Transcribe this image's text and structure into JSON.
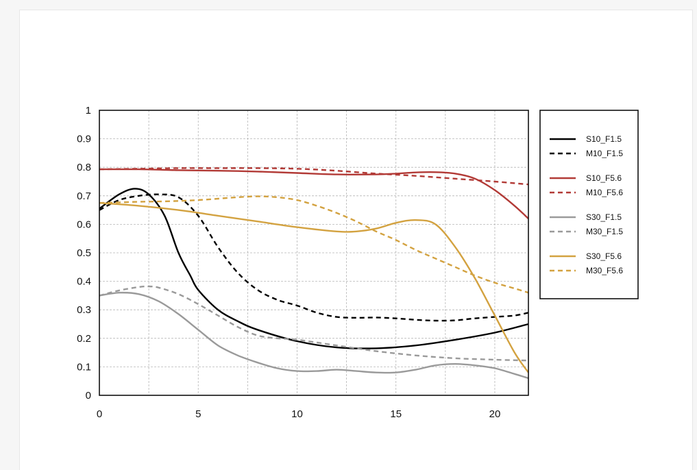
{
  "chart_data": {
    "type": "line",
    "title": "",
    "xlabel": "",
    "ylabel": "",
    "xlim": [
      0,
      21.7
    ],
    "ylim": [
      0,
      1
    ],
    "x_ticks": [
      0,
      5,
      10,
      15,
      20
    ],
    "x_tick_labels": [
      "0",
      "5",
      "10",
      "15",
      "20"
    ],
    "y_ticks": [
      0,
      0.1,
      0.2,
      0.3,
      0.4,
      0.5,
      0.6,
      0.7,
      0.8,
      0.9,
      1
    ],
    "y_tick_labels": [
      "0",
      "0.1",
      "0.2",
      "0.3",
      "0.4",
      "0.5",
      "0.6",
      "0.7",
      "0.8",
      "0.9",
      "1"
    ],
    "x_grid": [
      2.5,
      5,
      7.5,
      10,
      12.5,
      15,
      17.5,
      20
    ],
    "y_grid": [
      0.1,
      0.2,
      0.3,
      0.4,
      0.5,
      0.6,
      0.7,
      0.8,
      0.9
    ],
    "grid": true,
    "legend_position": "right, outside plot",
    "series": [
      {
        "name": "S10_F1.5",
        "color": "#000000",
        "dash": "solid",
        "x": [
          0,
          1,
          1.8,
          2.5,
          3.3,
          4,
          4.6,
          5,
          6,
          7,
          8,
          10,
          12,
          14,
          16,
          18,
          20,
          21.7
        ],
        "y": [
          0.655,
          0.705,
          0.725,
          0.705,
          0.63,
          0.5,
          0.42,
          0.37,
          0.3,
          0.26,
          0.23,
          0.19,
          0.168,
          0.165,
          0.175,
          0.195,
          0.22,
          0.25
        ]
      },
      {
        "name": "M10_F1.5",
        "color": "#000000",
        "dash": "dashed",
        "x": [
          0,
          1,
          2,
          3,
          4,
          5,
          6,
          7,
          8,
          9,
          10,
          11,
          12,
          13,
          14,
          15,
          16,
          17,
          18,
          19,
          20,
          21,
          21.7
        ],
        "y": [
          0.65,
          0.685,
          0.7,
          0.705,
          0.695,
          0.63,
          0.52,
          0.43,
          0.37,
          0.335,
          0.315,
          0.29,
          0.275,
          0.272,
          0.273,
          0.27,
          0.265,
          0.262,
          0.263,
          0.27,
          0.275,
          0.28,
          0.29
        ]
      },
      {
        "name": "S10_F5.6",
        "color": "#b23a36",
        "dash": "solid",
        "x": [
          0,
          2,
          4,
          6,
          8,
          10,
          12,
          14,
          15,
          16,
          17,
          18,
          19,
          20,
          21,
          21.7
        ],
        "y": [
          0.793,
          0.793,
          0.79,
          0.788,
          0.785,
          0.78,
          0.775,
          0.775,
          0.778,
          0.782,
          0.783,
          0.778,
          0.76,
          0.72,
          0.665,
          0.62
        ]
      },
      {
        "name": "M10_F5.6",
        "color": "#b23a36",
        "dash": "dashed",
        "x": [
          0,
          2,
          4,
          6,
          8,
          10,
          12,
          14,
          16,
          18,
          20,
          21.7
        ],
        "y": [
          0.793,
          0.795,
          0.797,
          0.797,
          0.797,
          0.795,
          0.788,
          0.778,
          0.77,
          0.76,
          0.75,
          0.74
        ]
      },
      {
        "name": "S30_F1.5",
        "color": "#9a9a9a",
        "dash": "solid",
        "x": [
          0,
          1,
          2,
          3,
          4,
          5,
          6,
          7,
          8,
          9,
          10,
          11,
          12,
          13,
          14,
          15,
          16,
          17,
          18,
          19,
          20,
          21,
          21.7
        ],
        "y": [
          0.35,
          0.36,
          0.355,
          0.33,
          0.285,
          0.23,
          0.175,
          0.14,
          0.115,
          0.095,
          0.085,
          0.085,
          0.09,
          0.085,
          0.08,
          0.08,
          0.09,
          0.105,
          0.11,
          0.105,
          0.095,
          0.075,
          0.06
        ]
      },
      {
        "name": "M30_F1.5",
        "color": "#9a9a9a",
        "dash": "dashed",
        "x": [
          0,
          1,
          2,
          2.5,
          3,
          4,
          5,
          6,
          7,
          8,
          9,
          10,
          12,
          14,
          16,
          18,
          20,
          21.7
        ],
        "y": [
          0.35,
          0.368,
          0.38,
          0.382,
          0.378,
          0.355,
          0.32,
          0.28,
          0.24,
          0.21,
          0.2,
          0.195,
          0.175,
          0.155,
          0.14,
          0.13,
          0.125,
          0.122
        ]
      },
      {
        "name": "S30_F5.6",
        "color": "#d3a240",
        "dash": "solid",
        "x": [
          0,
          2,
          4,
          6,
          8,
          10,
          12,
          13,
          14,
          15,
          16,
          17,
          18,
          19,
          20,
          21,
          21.7
        ],
        "y": [
          0.675,
          0.665,
          0.65,
          0.63,
          0.61,
          0.59,
          0.575,
          0.575,
          0.585,
          0.605,
          0.615,
          0.6,
          0.52,
          0.41,
          0.28,
          0.15,
          0.08
        ]
      },
      {
        "name": "M30_F5.6",
        "color": "#d3a240",
        "dash": "dashed",
        "x": [
          0,
          1,
          2,
          3,
          4,
          5,
          6,
          7,
          8,
          9,
          10,
          11,
          12,
          13,
          14,
          15,
          16,
          17,
          18,
          19,
          20,
          21,
          21.7
        ],
        "y": [
          0.675,
          0.677,
          0.679,
          0.68,
          0.682,
          0.685,
          0.69,
          0.695,
          0.698,
          0.695,
          0.685,
          0.665,
          0.64,
          0.61,
          0.575,
          0.545,
          0.51,
          0.48,
          0.45,
          0.42,
          0.395,
          0.375,
          0.36
        ]
      }
    ]
  }
}
